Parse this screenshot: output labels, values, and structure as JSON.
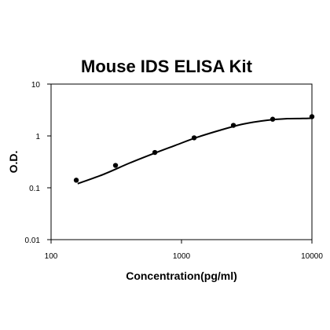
{
  "chart_data": {
    "type": "scatter",
    "title": "Mouse IDS ELISA Kit",
    "xlabel": "Concentration(pg/ml)",
    "ylabel": "O.D.",
    "xscale": "log",
    "yscale": "log",
    "xlim": [
      100,
      10000
    ],
    "ylim": [
      0.01,
      10
    ],
    "xticks": [
      {
        "value": 100,
        "label": "100"
      },
      {
        "value": 1000,
        "label": "1000"
      },
      {
        "value": 10000,
        "label": "10000"
      }
    ],
    "yticks": [
      {
        "value": 0.01,
        "label": "0.01"
      },
      {
        "value": 0.1,
        "label": "0.1"
      },
      {
        "value": 1,
        "label": "1"
      },
      {
        "value": 10,
        "label": "10"
      }
    ],
    "grid": false,
    "legend": "none",
    "colors": {
      "series": "#000000"
    },
    "series": [
      {
        "points": [
          {
            "x": 156,
            "y": 0.14
          },
          {
            "x": 312,
            "y": 0.27
          },
          {
            "x": 625,
            "y": 0.48
          },
          {
            "x": 1250,
            "y": 0.92
          },
          {
            "x": 2500,
            "y": 1.6
          },
          {
            "x": 5000,
            "y": 2.1
          },
          {
            "x": 10000,
            "y": 2.35
          }
        ],
        "fit_curve": [
          {
            "x": 160,
            "y": 0.12
          },
          {
            "x": 250,
            "y": 0.18
          },
          {
            "x": 400,
            "y": 0.3
          },
          {
            "x": 600,
            "y": 0.45
          },
          {
            "x": 900,
            "y": 0.66
          },
          {
            "x": 1300,
            "y": 0.93
          },
          {
            "x": 2000,
            "y": 1.3
          },
          {
            "x": 3000,
            "y": 1.7
          },
          {
            "x": 4500,
            "y": 2.0
          },
          {
            "x": 6500,
            "y": 2.15
          },
          {
            "x": 8500,
            "y": 2.17
          },
          {
            "x": 10000,
            "y": 2.2
          }
        ]
      }
    ]
  }
}
